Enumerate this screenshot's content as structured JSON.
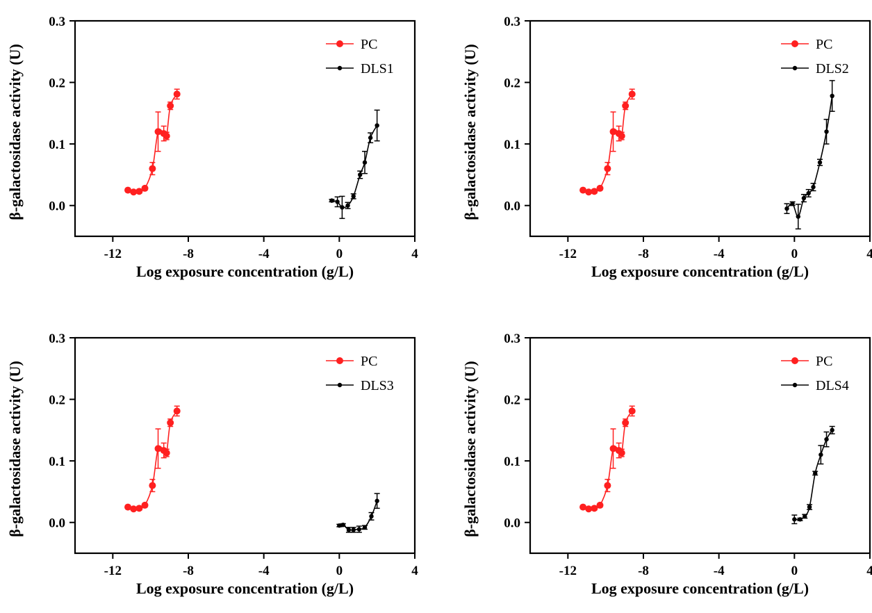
{
  "chart_data": [
    {
      "type": "line",
      "xlabel": "Log exposure concentration (g/L)",
      "ylabel": "β-galactosidase activity (U)",
      "xlim": [
        -14,
        4
      ],
      "ylim": [
        -0.05,
        0.3
      ],
      "xticks": [
        "-12",
        "-8",
        "-4",
        "0",
        "4"
      ],
      "yticks": [
        "0.0",
        "0.1",
        "0.2",
        "0.3"
      ],
      "legend_position": "top-right",
      "series": [
        {
          "name": "PC",
          "color": "#ff2020",
          "x": [
            -11.2,
            -10.9,
            -10.6,
            -10.3,
            -9.9,
            -9.6,
            -9.3,
            -9.15,
            -8.95,
            -8.6
          ],
          "y": [
            0.025,
            0.022,
            0.023,
            0.028,
            0.06,
            0.12,
            0.117,
            0.113,
            0.162,
            0.181
          ],
          "err": [
            0.002,
            0.002,
            0.003,
            0.003,
            0.01,
            0.032,
            0.012,
            0.006,
            0.006,
            0.008
          ]
        },
        {
          "name": "DLS1",
          "color": "#000000",
          "x": [
            -0.4,
            -0.1,
            0.15,
            0.45,
            0.75,
            1.1,
            1.35,
            1.65,
            2.0
          ],
          "y": [
            0.008,
            0.006,
            -0.003,
            0.0,
            0.015,
            0.05,
            0.07,
            0.11,
            0.13
          ],
          "err": [
            0.002,
            0.008,
            0.018,
            0.005,
            0.004,
            0.006,
            0.018,
            0.008,
            0.025
          ]
        }
      ]
    },
    {
      "type": "line",
      "xlabel": "Log exposure concentration (g/L)",
      "ylabel": "β-galactosidase activity (U)",
      "xlim": [
        -14,
        4
      ],
      "ylim": [
        -0.05,
        0.3
      ],
      "xticks": [
        "-12",
        "-8",
        "-4",
        "0",
        "4"
      ],
      "yticks": [
        "0.0",
        "0.1",
        "0.2",
        "0.3"
      ],
      "legend_position": "top-right",
      "series": [
        {
          "name": "PC",
          "color": "#ff2020",
          "x": [
            -11.2,
            -10.9,
            -10.6,
            -10.3,
            -9.9,
            -9.6,
            -9.3,
            -9.15,
            -8.95,
            -8.6
          ],
          "y": [
            0.025,
            0.022,
            0.023,
            0.028,
            0.06,
            0.12,
            0.117,
            0.113,
            0.162,
            0.181
          ],
          "err": [
            0.002,
            0.002,
            0.003,
            0.003,
            0.01,
            0.032,
            0.012,
            0.006,
            0.006,
            0.008
          ]
        },
        {
          "name": "DLS2",
          "color": "#000000",
          "x": [
            -0.4,
            -0.1,
            0.2,
            0.5,
            0.75,
            1.0,
            1.35,
            1.7,
            2.0
          ],
          "y": [
            -0.005,
            0.003,
            -0.018,
            0.012,
            0.02,
            0.03,
            0.07,
            0.12,
            0.178
          ],
          "err": [
            0.008,
            0.003,
            0.02,
            0.006,
            0.006,
            0.006,
            0.005,
            0.02,
            0.025
          ]
        }
      ]
    },
    {
      "type": "line",
      "xlabel": "Log exposure concentration (g/L)",
      "ylabel": "β-galactosidase activity (U)",
      "xlim": [
        -14,
        4
      ],
      "ylim": [
        -0.05,
        0.3
      ],
      "xticks": [
        "-12",
        "-8",
        "-4",
        "0",
        "4"
      ],
      "yticks": [
        "0.0",
        "0.1",
        "0.2",
        "0.3"
      ],
      "legend_position": "top-right",
      "series": [
        {
          "name": "PC",
          "color": "#ff2020",
          "x": [
            -11.2,
            -10.9,
            -10.6,
            -10.3,
            -9.9,
            -9.6,
            -9.3,
            -9.15,
            -8.95,
            -8.6
          ],
          "y": [
            0.025,
            0.022,
            0.023,
            0.028,
            0.06,
            0.12,
            0.117,
            0.113,
            0.162,
            0.181
          ],
          "err": [
            0.002,
            0.002,
            0.003,
            0.003,
            0.01,
            0.032,
            0.012,
            0.006,
            0.006,
            0.008
          ]
        },
        {
          "name": "DLS3",
          "color": "#000000",
          "x": [
            0.0,
            0.2,
            0.5,
            0.75,
            1.05,
            1.35,
            1.7,
            2.0
          ],
          "y": [
            -0.005,
            -0.004,
            -0.012,
            -0.012,
            -0.011,
            -0.008,
            0.01,
            0.035
          ],
          "err": [
            0.002,
            0.002,
            0.004,
            0.004,
            0.005,
            0.003,
            0.006,
            0.012
          ]
        }
      ]
    },
    {
      "type": "line",
      "xlabel": "Log exposure concentration (g/L)",
      "ylabel": "β-galactosidase activity (U)",
      "xlim": [
        -14,
        4
      ],
      "ylim": [
        -0.05,
        0.3
      ],
      "xticks": [
        "-12",
        "-8",
        "-4",
        "0",
        "4"
      ],
      "yticks": [
        "0.0",
        "0.1",
        "0.2",
        "0.3"
      ],
      "legend_position": "top-right",
      "series": [
        {
          "name": "PC",
          "color": "#ff2020",
          "x": [
            -11.2,
            -10.9,
            -10.6,
            -10.3,
            -9.9,
            -9.6,
            -9.3,
            -9.15,
            -8.95,
            -8.6
          ],
          "y": [
            0.025,
            0.022,
            0.023,
            0.028,
            0.06,
            0.12,
            0.117,
            0.113,
            0.162,
            0.181
          ],
          "err": [
            0.002,
            0.002,
            0.003,
            0.003,
            0.01,
            0.032,
            0.012,
            0.006,
            0.006,
            0.008
          ]
        },
        {
          "name": "DLS4",
          "color": "#000000",
          "x": [
            0.0,
            0.3,
            0.55,
            0.8,
            1.1,
            1.4,
            1.7,
            2.0
          ],
          "y": [
            0.005,
            0.005,
            0.01,
            0.025,
            0.08,
            0.11,
            0.135,
            0.15
          ],
          "err": [
            0.007,
            0.002,
            0.003,
            0.004,
            0.003,
            0.015,
            0.012,
            0.006
          ]
        }
      ]
    }
  ]
}
